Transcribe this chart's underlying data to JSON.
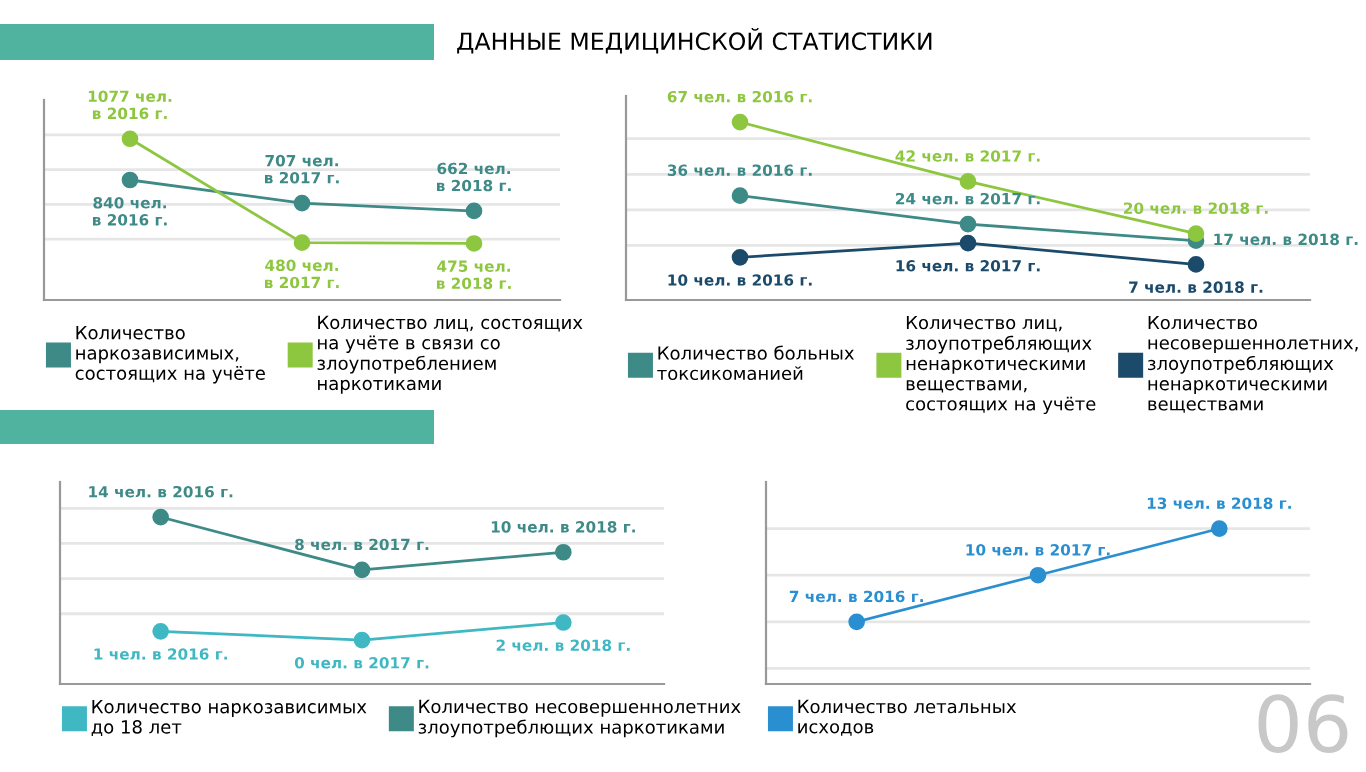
{
  "chart_data": [
    {
      "type": "line",
      "title": "ДАННЫЕ МЕДИЦИНСКОЙ СТАТИСТИКИ",
      "categories": [
        null,
        null,
        null
      ],
      "ylim": [
        150,
        1300
      ],
      "yticks": [
        {
          "value": 500,
          "label": null
        },
        {
          "value": 700,
          "label": null
        },
        {
          "value": 900,
          "label": null
        },
        {
          "value": 1100,
          "label": null
        }
      ],
      "grid": "y",
      "legend": "bottom",
      "marker": "circle",
      "tick_labels": false,
      "series": [
        {
          "name": "Количество\nнаркозависимых,\nсостоящих на учёте",
          "color": "#3d8a87",
          "values": [
            840,
            707,
            662
          ],
          "value_labels": [
            "840 чел.\nв 2016 г.",
            "707 чел.\nв 2017 г.",
            "662 чел.\nв 2018 г."
          ]
        },
        {
          "name": "Количество лиц, состоящих\nна учёте в связи со\nзлоупотреблением\nнаркотиками",
          "color": "#8dc63f",
          "values": [
            1077,
            480,
            475
          ],
          "value_labels": [
            "1077 чел.\nв 2016 г.",
            "480 чел.\nв 2017 г.",
            "475 чел.\nв 2018 г."
          ]
        }
      ]
    },
    {
      "type": "line",
      "categories": [
        null,
        null,
        null
      ],
      "ylim": [
        -8,
        78
      ],
      "yticks": [
        {
          "value": 15,
          "label": null
        },
        {
          "value": 30,
          "label": null
        },
        {
          "value": 45,
          "label": null
        },
        {
          "value": 60,
          "label": null
        }
      ],
      "grid": "y",
      "legend": "bottom",
      "marker": "circle",
      "tick_labels": false,
      "series": [
        {
          "name": "Количество больных\nтоксикоманией",
          "color": "#3d8a87",
          "values": [
            36,
            24,
            17
          ],
          "value_labels": [
            "36 чел. в 2016 г.",
            "24 чел. в 2017 г.",
            "17 чел. в 2018 г."
          ]
        },
        {
          "name": "Количество лиц,\nзлоупотребляющих\nненаркотическими\nвеществами,\nсостоящих на учёте",
          "color": "#8dc63f",
          "values": [
            67,
            42,
            20
          ],
          "value_labels": [
            "67 чел. в 2016 г.",
            "42 чел. в 2017 г.",
            "20 чел. в 2018 г."
          ]
        },
        {
          "name": "Количество\nнесовершеннолетних,\nзлоупотребляющих\nненаркотическими\nвеществами",
          "color": "#1b4a6b",
          "values": [
            10,
            16,
            7
          ],
          "value_labels": [
            "10 чел. в 2016 г.",
            "16 чел. в 2017 г.",
            "7 чел. в 2018 г."
          ]
        }
      ]
    },
    {
      "type": "line",
      "categories": [
        null,
        null,
        null
      ],
      "ylim": [
        -5,
        18
      ],
      "yticks": [
        {
          "value": 3,
          "label": null
        },
        {
          "value": 7,
          "label": null
        },
        {
          "value": 11,
          "label": null
        },
        {
          "value": 15,
          "label": null
        }
      ],
      "grid": "y",
      "legend": "bottom",
      "marker": "circle",
      "tick_labels": false,
      "series": [
        {
          "name": "Количество наркозависимых\nдо 18 лет",
          "color": "#3fb8c4",
          "values": [
            1,
            0,
            2
          ],
          "value_labels": [
            "1 чел. в 2016 г.",
            "0 чел. в 2017 г.",
            "2 чел. в 2018 г."
          ]
        },
        {
          "name": "Количество несовершеннолетних\nзлоупотреблющих наркотиками",
          "color": "#3d8a87",
          "values": [
            14,
            8,
            10
          ],
          "value_labels": [
            "14 чел. в 2016 г.",
            "8 чел. в 2017 г.",
            "10 чел. в 2018 г."
          ]
        }
      ]
    },
    {
      "type": "line",
      "categories": [
        null,
        null,
        null
      ],
      "ylim": [
        3,
        16
      ],
      "yticks": [
        {
          "value": 4,
          "label": null
        },
        {
          "value": 7,
          "label": null
        },
        {
          "value": 10,
          "label": null
        },
        {
          "value": 13,
          "label": null
        }
      ],
      "grid": "y",
      "legend": "bottom",
      "marker": "circle",
      "tick_labels": false,
      "annotations": [
        "06"
      ],
      "series": [
        {
          "name": "Количество летальных\nисходов",
          "color": "#2a8fd0",
          "values": [
            7,
            10,
            13
          ],
          "value_labels": [
            "7 чел. в 2016 г.",
            "10 чел. в 2017 г.",
            "13 чел. в 2018 г."
          ]
        }
      ]
    }
  ]
}
